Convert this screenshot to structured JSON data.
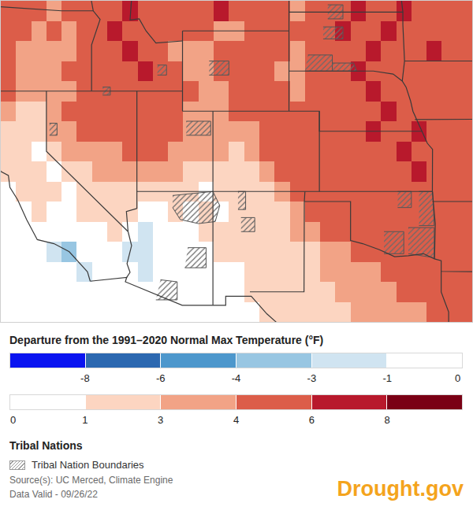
{
  "chart_data": {
    "type": "heatmap",
    "x": [
      -122.5,
      -121.5,
      -120.5,
      -119.5,
      -118.5,
      -117.5,
      -116.5,
      -115.5,
      -114.5,
      -113.5,
      -112.5,
      -111.5,
      -110.5,
      -109.5,
      -108.5,
      -107.5,
      -106.5,
      -105.5,
      -104.5,
      -103.5,
      -102.5,
      -101.5,
      -100.5,
      -99.5,
      -98.5,
      -97.5,
      -96.5,
      -95.5,
      -94.5,
      -93.5,
      -92.5
    ],
    "y": [
      31,
      32,
      33,
      34,
      35,
      36,
      37,
      38,
      39,
      40,
      41,
      42,
      43,
      44,
      45,
      46
    ],
    "z": [
      [
        null,
        null,
        null,
        null,
        null,
        null,
        null,
        null,
        null,
        null,
        null,
        null,
        null,
        null,
        null,
        null,
        null,
        1,
        1,
        1.5,
        1.5,
        2,
        2.5,
        3,
        3,
        3.5,
        3.5,
        3.5,
        4,
        4.5,
        4.5
      ],
      [
        null,
        null,
        null,
        null,
        null,
        null,
        null,
        null,
        null,
        0.5,
        0.5,
        0.5,
        0.5,
        0.5,
        0.5,
        0.5,
        1,
        1.5,
        1.5,
        1.5,
        2,
        2.5,
        3,
        3,
        3.5,
        3.5,
        4,
        4,
        4.5,
        5,
        5
      ],
      [
        null,
        null,
        null,
        null,
        null,
        -1.5,
        0.5,
        0.5,
        0.5,
        -1.5,
        0.5,
        0.5,
        0.5,
        0.5,
        0.5,
        0.5,
        1,
        1.5,
        1.5,
        2,
        2,
        3,
        3.5,
        3.5,
        3.5,
        4,
        4.5,
        5,
        5,
        5,
        5
      ],
      [
        null,
        null,
        null,
        -1.5,
        -3.5,
        0.5,
        0.5,
        0.5,
        -1.5,
        -1.5,
        0.5,
        0.5,
        0.5,
        0.5,
        1,
        1,
        1,
        1.5,
        1.5,
        2,
        2.5,
        3.5,
        3.5,
        4,
        4.5,
        5,
        5,
        5,
        5,
        5,
        5
      ],
      [
        null,
        null,
        0.5,
        0.5,
        0.5,
        0.5,
        0.5,
        1,
        0.5,
        -1.5,
        0.5,
        0.5,
        0.5,
        1,
        1,
        1,
        1,
        1.5,
        2,
        3,
        3.5,
        4,
        4.5,
        5,
        5,
        5,
        5,
        5,
        5,
        5,
        5
      ],
      [
        null,
        0.5,
        1,
        0.5,
        0.5,
        1,
        1.5,
        1.5,
        1,
        0.5,
        0.5,
        1,
        0.5,
        1,
        0.5,
        1,
        1,
        2,
        2.5,
        3.5,
        4,
        4.5,
        5,
        4.5,
        5,
        5,
        5,
        5,
        5,
        5,
        5
      ],
      [
        null,
        1,
        1.5,
        1,
        0.5,
        1.5,
        2,
        2,
        2,
        2,
        1.5,
        1.5,
        1,
        0.5,
        1,
        1.5,
        2,
        2.5,
        3.5,
        4,
        4.5,
        5,
        5,
        5,
        5,
        5,
        5,
        5,
        5,
        5,
        5
      ],
      [
        1,
        1.5,
        1,
        0.5,
        2,
        2.5,
        3,
        3,
        3,
        3,
        3,
        3,
        2.5,
        2.5,
        2,
        2,
        2.5,
        3.5,
        4,
        4.5,
        5,
        5,
        5,
        5,
        5,
        5,
        5,
        6.5,
        5,
        5,
        5
      ],
      [
        1.5,
        1,
        0.5,
        2,
        3,
        3.5,
        3.5,
        3.5,
        4,
        4,
        4.5,
        3.5,
        3.5,
        3,
        3,
        2.5,
        3,
        4,
        4.5,
        5,
        5,
        5,
        5,
        5,
        5,
        5,
        6.5,
        5,
        5,
        5,
        5
      ],
      [
        1.5,
        2,
        1.5,
        3,
        3.5,
        4,
        4.5,
        4.5,
        4.5,
        4.5,
        4.5,
        4,
        3.5,
        3.5,
        3.5,
        3.5,
        3.5,
        4.5,
        5,
        5,
        5,
        5,
        5,
        5,
        6.5,
        5,
        5,
        6.5,
        5,
        5,
        5
      ],
      [
        3,
        2.5,
        2,
        3.5,
        4,
        4.5,
        5,
        5,
        5,
        5,
        4.5,
        4,
        3.5,
        3.5,
        3.5,
        4,
        4.5,
        5,
        5,
        4.5,
        5,
        5,
        5,
        5,
        5,
        6.5,
        5,
        5,
        5,
        5,
        5
      ],
      [
        4,
        3,
        3,
        3.5,
        3.5,
        4,
        4.5,
        5,
        5,
        5,
        5,
        4.5,
        4,
        3.5,
        3.5,
        4,
        4.5,
        5,
        4,
        3.5,
        5,
        5,
        5,
        5,
        6.5,
        5,
        5,
        5,
        5,
        5,
        5
      ],
      [
        4,
        3.5,
        3,
        3.5,
        4,
        4.5,
        5,
        5,
        5,
        6.5,
        5,
        4,
        3.5,
        3.5,
        4,
        4.5,
        5,
        5,
        3.5,
        3.5,
        4.5,
        5,
        5,
        6.5,
        5,
        5,
        5,
        5,
        5,
        4.5,
        5
      ],
      [
        4.5,
        3.5,
        3.5,
        3,
        3.5,
        5,
        5,
        5,
        6.5,
        5,
        4.5,
        3.5,
        3.5,
        3.5,
        4,
        4,
        5,
        5,
        4,
        3.5,
        4,
        5,
        5,
        5,
        6.5,
        5,
        5,
        5,
        6.5,
        5,
        5
      ],
      [
        5,
        4.5,
        3.5,
        4,
        3.5,
        5,
        5,
        6.5,
        5,
        5,
        4.5,
        5,
        5,
        4,
        3.5,
        3.5,
        5,
        5,
        5,
        4,
        5,
        5,
        6.5,
        5,
        5,
        6.5,
        5,
        5,
        5,
        5,
        4.5
      ],
      [
        5,
        5,
        4.5,
        3.5,
        4.5,
        5,
        5,
        5,
        6.5,
        5,
        5,
        5,
        4.5,
        5,
        6.5,
        5,
        5,
        5,
        5,
        3.5,
        4,
        5,
        5,
        6.5,
        5,
        5,
        6.5,
        5,
        5,
        4.5,
        5
      ]
    ],
    "xlim": [
      -123,
      -92
    ],
    "ylim": [
      30.5,
      46.5
    ],
    "tick_labels": false,
    "colorbar": {
      "title": "Departure from the 1991–2020 Normal Max Temperature (°F)",
      "bins": [
        {
          "ticks": [
            -8,
            -6,
            -4,
            -3,
            -1,
            0
          ],
          "colors": [
            "#0a14f0",
            "#2c68b0",
            "#4d97cc",
            "#98c6e2",
            "#d0e4f1",
            "#ffffff"
          ]
        },
        {
          "ticks": [
            0,
            1,
            3,
            4,
            6,
            8
          ],
          "colors": [
            "#ffffff",
            "#fcd5c1",
            "#f2a386",
            "#dc5d49",
            "#b8192c",
            "#7a0015"
          ]
        }
      ]
    },
    "overlay": {
      "title": "Tribal Nations",
      "label": "Tribal Nation Boundaries"
    },
    "source": "Source(s): UC Merced, Climate Engine",
    "data_valid": "Data Valid - 09/26/22",
    "logo": "Drought.gov"
  }
}
